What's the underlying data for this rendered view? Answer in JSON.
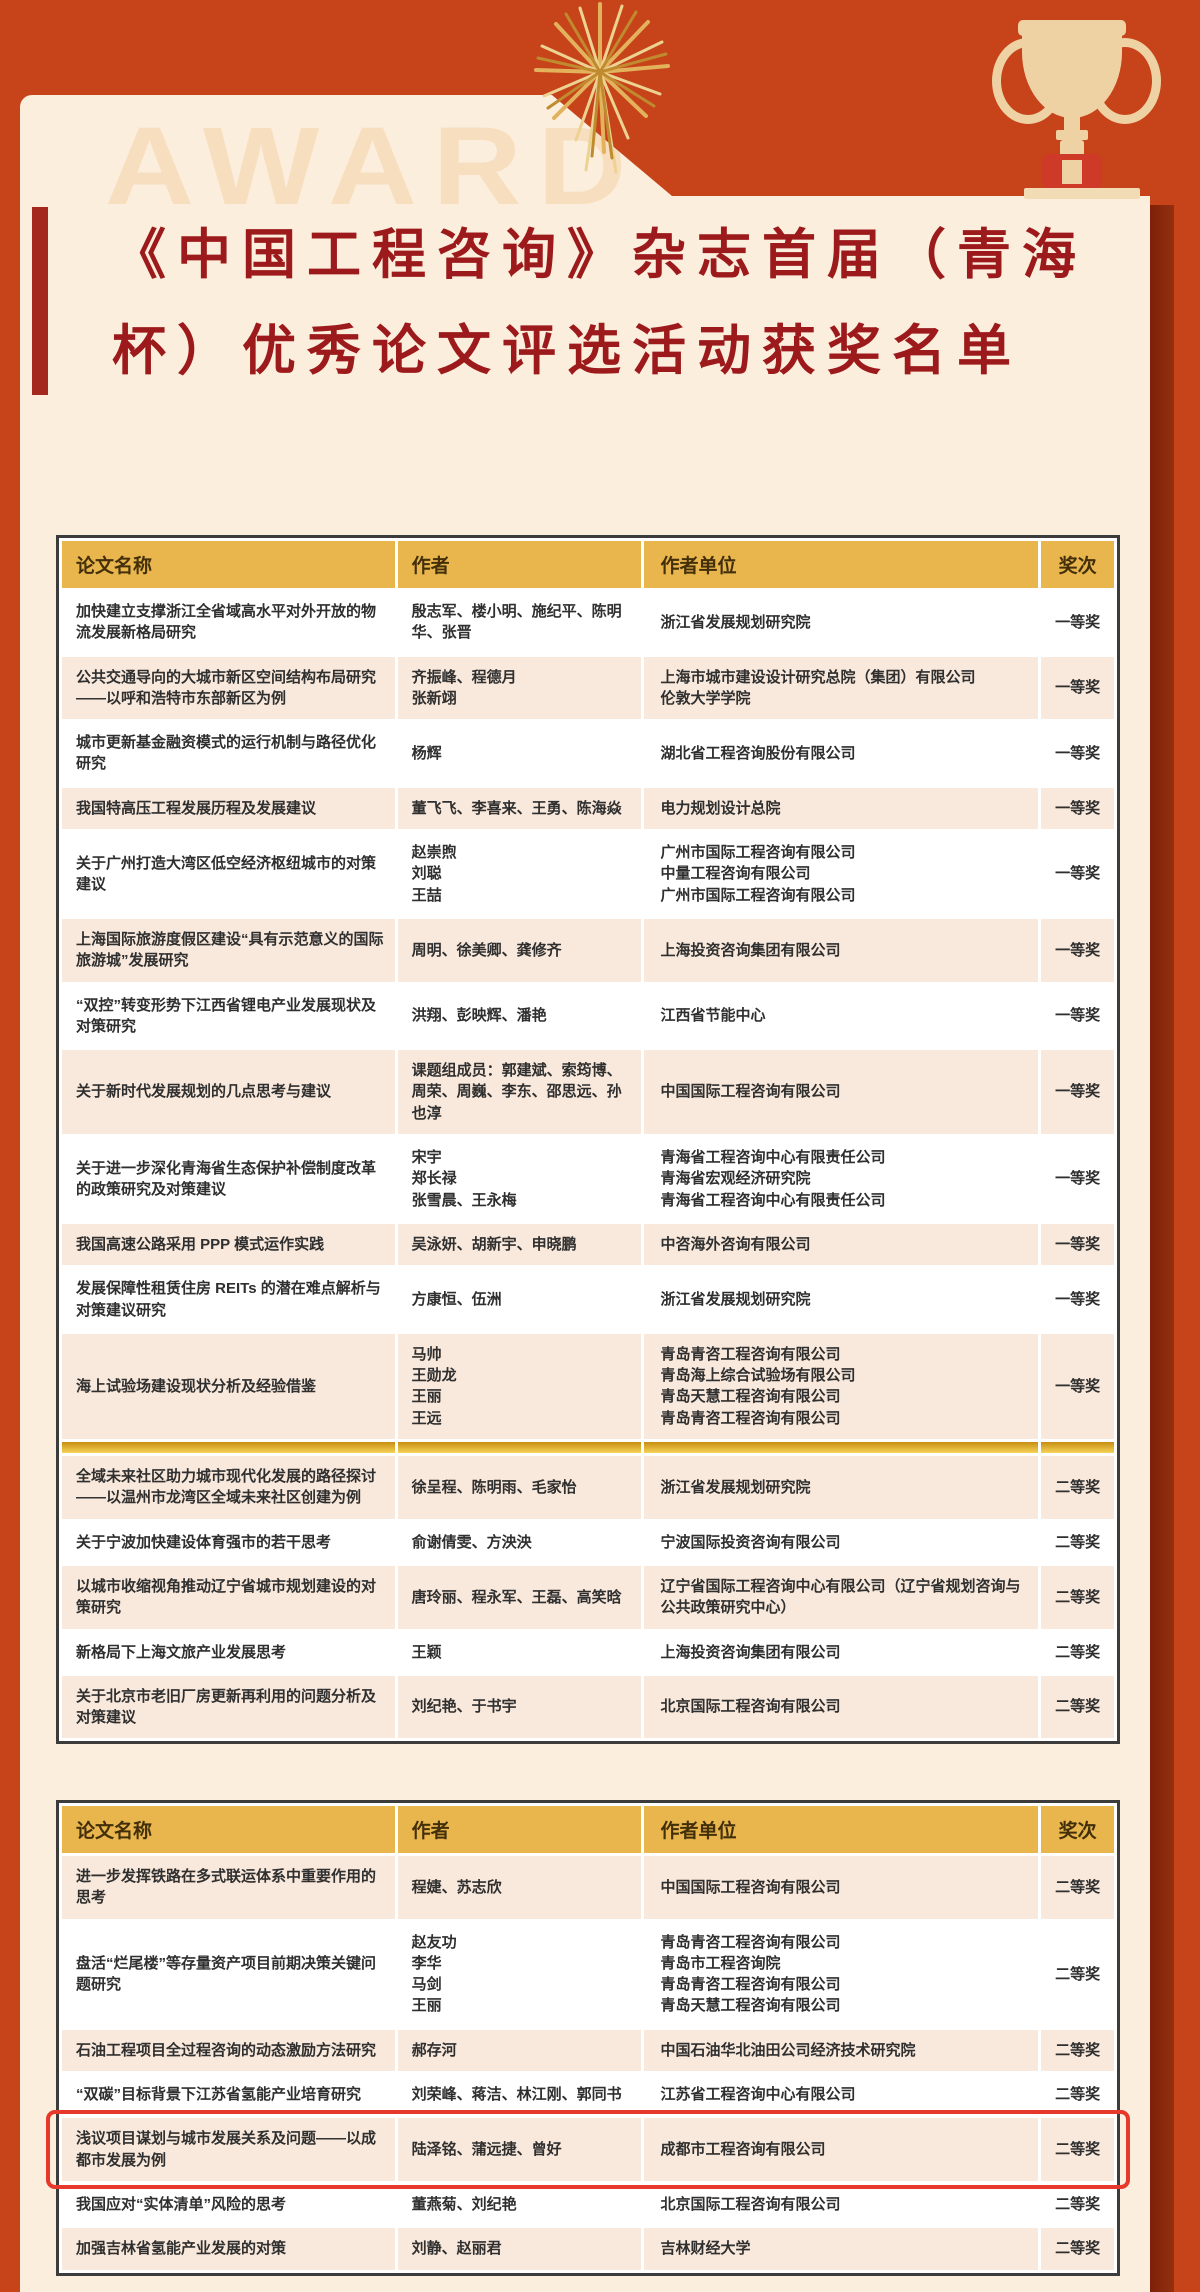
{
  "page": {
    "watermark": "AWARD",
    "title_lines": [
      "《中国工程咨询》杂志首届（青海",
      "杯）优秀论文评选活动获奖名单"
    ]
  },
  "colors": {
    "background": "#c7431a",
    "card": "#fbeedd",
    "title_red": "#9c1a1b",
    "header_gold": "#e9b54d",
    "row_peach": "#f9e9dc",
    "divider_gold": "#e3a91c",
    "highlight_border": "#e6392b",
    "trophy_tan": "#efd2a4",
    "trophy_base_red": "#ce3a27"
  },
  "icons": [
    "trophy-icon",
    "firework-icon"
  ],
  "tables": [
    {
      "headers": [
        "论文名称",
        "作者",
        "作者单位",
        "奖次"
      ],
      "divider_after": 12,
      "rows": [
        {
          "title": "加快建立支撑浙江全省域高水平对外开放的物流发展新格局研究",
          "authors": "殷志军、楼小明、施纪平、陈明华、张晋",
          "orgs": "浙江省发展规划研究院",
          "award": "一等奖",
          "shade": "white"
        },
        {
          "title": "公共交通导向的大城市新区空间结构布局研究——以呼和浩特市东部新区为例",
          "authors": "齐振峰、程德月\n张新翊",
          "orgs": "上海市城市建设设计研究总院（集团）有限公司\n伦敦大学学院",
          "award": "一等奖",
          "shade": "peach"
        },
        {
          "title": "城市更新基金融资模式的运行机制与路径优化研究",
          "authors": "杨辉",
          "orgs": "湖北省工程咨询股份有限公司",
          "award": "一等奖",
          "shade": "white"
        },
        {
          "title": "我国特高压工程发展历程及发展建议",
          "authors": "董飞飞、李喜来、王勇、陈海焱",
          "orgs": "电力规划设计总院",
          "award": "一等奖",
          "shade": "peach"
        },
        {
          "title": "关于广州打造大湾区低空经济枢纽城市的对策建议",
          "authors": "赵崇煦\n刘聪\n王喆",
          "orgs": "广州市国际工程咨询有限公司\n中量工程咨询有限公司\n广州市国际工程咨询有限公司",
          "award": "一等奖",
          "shade": "white"
        },
        {
          "title": "上海国际旅游度假区建设“具有示范意义的国际旅游城”发展研究",
          "authors": "周明、徐美卿、龚修齐",
          "orgs": "上海投资咨询集团有限公司",
          "award": "一等奖",
          "shade": "peach"
        },
        {
          "title": "“双控”转变形势下江西省锂电产业发展现状及对策研究",
          "authors": "洪翔、彭映辉、潘艳",
          "orgs": "江西省节能中心",
          "award": "一等奖",
          "shade": "white"
        },
        {
          "title": "关于新时代发展规划的几点思考与建议",
          "authors": "课题组成员：郭建斌、索筠博、周荣、周巍、李东、邵思远、孙也淳",
          "orgs": "中国国际工程咨询有限公司",
          "award": "一等奖",
          "shade": "peach"
        },
        {
          "title": "关于进一步深化青海省生态保护补偿制度改革的政策研究及对策建议",
          "authors": "宋宇\n郑长禄\n张雪晨、王永梅",
          "orgs": "青海省工程咨询中心有限责任公司\n青海省宏观经济研究院\n青海省工程咨询中心有限责任公司",
          "award": "一等奖",
          "shade": "white"
        },
        {
          "title": "我国高速公路采用 PPP 模式运作实践",
          "authors": "吴泳妍、胡新宇、申晓鹏",
          "orgs": "中咨海外咨询有限公司",
          "award": "一等奖",
          "shade": "peach"
        },
        {
          "title": "发展保障性租赁住房 REITs 的潜在难点解析与对策建议研究",
          "authors": "方康恒、伍洲",
          "orgs": "浙江省发展规划研究院",
          "award": "一等奖",
          "shade": "white"
        },
        {
          "title": "海上试验场建设现状分析及经验借鉴",
          "authors": "马帅\n王勋龙\n王丽\n王远",
          "orgs": "青岛青咨工程咨询有限公司\n青岛海上综合试验场有限公司\n青岛天慧工程咨询有限公司\n青岛青咨工程咨询有限公司",
          "award": "一等奖",
          "shade": "peach"
        },
        {
          "title": "全域未来社区助力城市现代化发展的路径探讨——以温州市龙湾区全域未来社区创建为例",
          "authors": "徐呈程、陈明雨、毛家怡",
          "orgs": "浙江省发展规划研究院",
          "award": "二等奖",
          "shade": "peach"
        },
        {
          "title": "关于宁波加快建设体育强市的若干思考",
          "authors": "俞谢倩雯、方泱泱",
          "orgs": "宁波国际投资咨询有限公司",
          "award": "二等奖",
          "shade": "white"
        },
        {
          "title": "以城市收缩视角推动辽宁省城市规划建设的对策研究",
          "authors": "唐玲丽、程永军、王磊、高笑晗",
          "orgs": "辽宁省国际工程咨询中心有限公司（辽宁省规划咨询与公共政策研究中心）",
          "award": "二等奖",
          "shade": "peach"
        },
        {
          "title": "新格局下上海文旅产业发展思考",
          "authors": "王颖",
          "orgs": "上海投资咨询集团有限公司",
          "award": "二等奖",
          "shade": "white"
        },
        {
          "title": "关于北京市老旧厂房更新再利用的问题分析及对策建议",
          "authors": "刘纪艳、于书宇",
          "orgs": "北京国际工程咨询有限公司",
          "award": "二等奖",
          "shade": "peach"
        }
      ]
    },
    {
      "headers": [
        "论文名称",
        "作者",
        "作者单位",
        "奖次"
      ],
      "divider_after": null,
      "rows": [
        {
          "title": "进一步发挥铁路在多式联运体系中重要作用的思考",
          "authors": "程婕、苏志欣",
          "orgs": "中国国际工程咨询有限公司",
          "award": "二等奖",
          "shade": "peach"
        },
        {
          "title": "盘活“烂尾楼”等存量资产项目前期决策关键问题研究",
          "authors": "赵友功\n李华\n马剑\n王丽",
          "orgs": "青岛青咨工程咨询有限公司\n青岛市工程咨询院\n青岛青咨工程咨询有限公司\n青岛天慧工程咨询有限公司",
          "award": "二等奖",
          "shade": "white"
        },
        {
          "title": "石油工程项目全过程咨询的动态激励方法研究",
          "authors": "郝存河",
          "orgs": "中国石油华北油田公司经济技术研究院",
          "award": "二等奖",
          "shade": "peach"
        },
        {
          "title": "“双碳”目标背景下江苏省氢能产业培育研究",
          "authors": "刘荣峰、蒋洁、林江刚、郭同书",
          "orgs": "江苏省工程咨询中心有限公司",
          "award": "二等奖",
          "shade": "white"
        },
        {
          "title": "浅议项目谋划与城市发展关系及问题——以成都市发展为例",
          "authors": "陆泽铭、蒲远捷、曾好",
          "orgs": "成都市工程咨询有限公司",
          "award": "二等奖",
          "shade": "peach",
          "highlight": true
        },
        {
          "title": "我国应对“实体清单”风险的思考",
          "authors": "董燕菊、刘纪艳",
          "orgs": "北京国际工程咨询有限公司",
          "award": "二等奖",
          "shade": "white"
        },
        {
          "title": "加强吉林省氢能产业发展的对策",
          "authors": "刘静、赵丽君",
          "orgs": "吉林财经大学",
          "award": "二等奖",
          "shade": "peach"
        }
      ]
    }
  ]
}
